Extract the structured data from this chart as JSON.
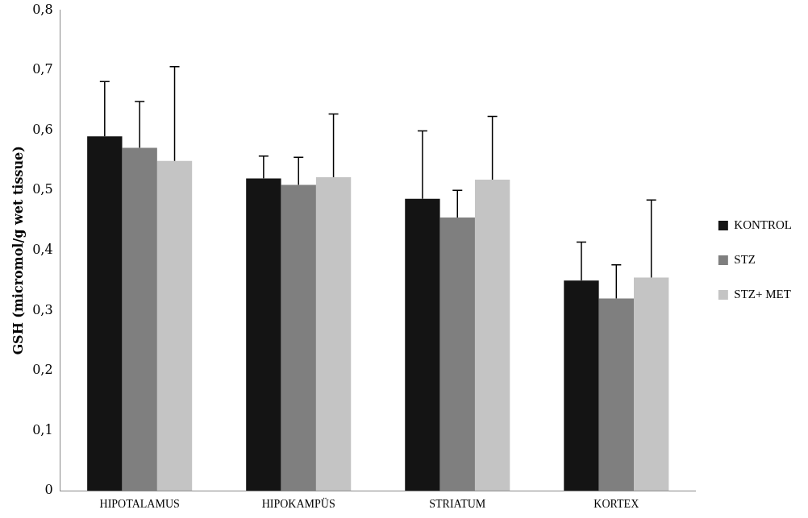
{
  "chart_data": {
    "type": "bar",
    "ylabel": "GSH (micromol/g wet tissue)",
    "categories": [
      "HIPOTALAMUS",
      "HIPOKAMPÜS",
      "STRIATUM",
      "KORTEX"
    ],
    "series": [
      {
        "name": "KONTROL",
        "color": "#141414",
        "values": [
          0.59,
          0.52,
          0.486,
          0.35
        ],
        "errors": [
          [
            0.59,
            0.681
          ],
          [
            0.52,
            0.557
          ],
          [
            0.486,
            0.599
          ],
          [
            0.35,
            0.414
          ]
        ]
      },
      {
        "name": "STZ",
        "color": "#7f7f7f",
        "values": [
          0.571,
          0.509,
          0.455,
          0.32
        ],
        "errors": [
          [
            0.571,
            0.648
          ],
          [
            0.509,
            0.555
          ],
          [
            0.455,
            0.5
          ],
          [
            0.32,
            0.376
          ]
        ]
      },
      {
        "name": "STZ+ MET",
        "color": "#c4c4c4",
        "values": [
          0.549,
          0.522,
          0.518,
          0.355
        ],
        "errors": [
          [
            0.549,
            0.706
          ],
          [
            0.522,
            0.627
          ],
          [
            0.518,
            0.623
          ],
          [
            0.355,
            0.484
          ]
        ]
      }
    ],
    "ylim": [
      0,
      0.8
    ],
    "yticks": [
      {
        "value": 0,
        "label": "0"
      },
      {
        "value": 0.1,
        "label": "0,1"
      },
      {
        "value": 0.2,
        "label": "0,2"
      },
      {
        "value": 0.3,
        "label": "0,3"
      },
      {
        "value": 0.4,
        "label": "0,4"
      },
      {
        "value": 0.5,
        "label": "0,5"
      },
      {
        "value": 0.6,
        "label": "0,6"
      },
      {
        "value": 0.7,
        "label": "0,7"
      },
      {
        "value": 0.8,
        "label": "0,8"
      }
    ],
    "grid": false,
    "legend": "right"
  }
}
